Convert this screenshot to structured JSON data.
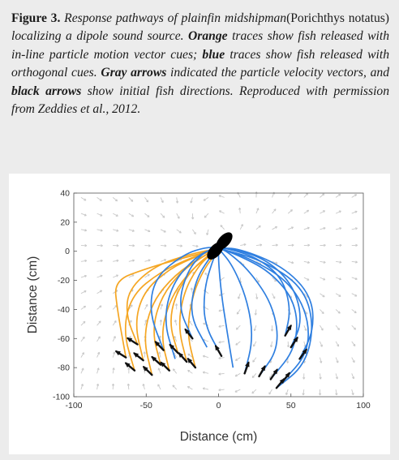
{
  "caption": {
    "label": "Figure 3.",
    "p1": " Response pathways of plainfin midshipman",
    "p2": "(Porichthys notatus)",
    "p3": " localizing a dipole sound source. ",
    "orange": "Orange",
    "p4": " traces show fish released with in-line particle motion vector cues; ",
    "blue": "blue",
    "p5": " traces show fish released with orthogonal cues. ",
    "gray": "Gray arrows",
    "p6": " indicated the particle velocity vectors, and ",
    "black": "black arrows",
    "p7": " show initial fish directions. Reproduced with permission from Zeddies et al., 2012."
  },
  "chart_data": {
    "type": "line",
    "title": "",
    "xlabel": "Distance (cm)",
    "ylabel": "Distance (cm)",
    "xlim": [
      -100,
      100
    ],
    "ylim": [
      -100,
      40
    ],
    "xticks": [
      -100,
      -50,
      0,
      50,
      100
    ],
    "yticks": [
      40,
      20,
      0,
      -20,
      -40,
      -60,
      -80,
      -100
    ],
    "grid": false,
    "colors": {
      "orange": "#f5a623",
      "blue": "#2f7fe0",
      "gray": "#c8c8c8",
      "black": "#111111"
    },
    "source": {
      "x": 0,
      "y": 2
    },
    "series": [
      {
        "color": "orange",
        "traces": [
          [
            [
              -64,
              -73
            ],
            [
              -70,
              -40
            ],
            [
              -72,
              -20
            ],
            [
              -50,
              -12
            ],
            [
              -30,
              -6
            ],
            [
              -10,
              -1
            ],
            [
              0,
              2
            ]
          ],
          [
            [
              -58,
              -82
            ],
            [
              -66,
              -55
            ],
            [
              -60,
              -30
            ],
            [
              -40,
              -14
            ],
            [
              -18,
              -4
            ],
            [
              0,
              2
            ]
          ],
          [
            [
              -52,
              -75
            ],
            [
              -58,
              -50
            ],
            [
              -52,
              -28
            ],
            [
              -34,
              -12
            ],
            [
              -14,
              -3
            ],
            [
              0,
              2
            ]
          ],
          [
            [
              -46,
              -85
            ],
            [
              -52,
              -60
            ],
            [
              -46,
              -35
            ],
            [
              -30,
              -16
            ],
            [
              -12,
              -4
            ],
            [
              0,
              2
            ]
          ],
          [
            [
              -40,
              -78
            ],
            [
              -46,
              -55
            ],
            [
              -40,
              -32
            ],
            [
              -26,
              -14
            ],
            [
              -10,
              -3
            ],
            [
              0,
              2
            ]
          ],
          [
            [
              -34,
              -82
            ],
            [
              -40,
              -58
            ],
            [
              -34,
              -34
            ],
            [
              -22,
              -16
            ],
            [
              -8,
              -4
            ],
            [
              0,
              2
            ]
          ],
          [
            [
              -28,
              -70
            ],
            [
              -34,
              -50
            ],
            [
              -30,
              -30
            ],
            [
              -18,
              -12
            ],
            [
              -6,
              -2
            ],
            [
              0,
              2
            ]
          ],
          [
            [
              -22,
              -76
            ],
            [
              -28,
              -52
            ],
            [
              -24,
              -28
            ],
            [
              -14,
              -10
            ],
            [
              -4,
              -1
            ],
            [
              0,
              2
            ]
          ],
          [
            [
              -16,
              -80
            ],
            [
              -22,
              -56
            ],
            [
              -18,
              -30
            ],
            [
              -10,
              -12
            ],
            [
              -2,
              -2
            ],
            [
              0,
              2
            ]
          ],
          [
            [
              -56,
              -64
            ],
            [
              -64,
              -44
            ],
            [
              -62,
              -26
            ],
            [
              -44,
              -10
            ],
            [
              -20,
              -2
            ],
            [
              0,
              2
            ]
          ]
        ]
      },
      {
        "color": "blue",
        "traces": [
          [
            [
              -38,
              -68
            ],
            [
              -48,
              -42
            ],
            [
              -44,
              -18
            ],
            [
              -24,
              -2
            ],
            [
              -8,
              3
            ],
            [
              0,
              2
            ]
          ],
          [
            [
              -30,
              -74
            ],
            [
              -38,
              -48
            ],
            [
              -32,
              -22
            ],
            [
              -16,
              -4
            ],
            [
              -4,
              2
            ],
            [
              0,
              2
            ]
          ],
          [
            [
              -18,
              -60
            ],
            [
              -28,
              -38
            ],
            [
              -22,
              -14
            ],
            [
              -10,
              0
            ],
            [
              0,
              2
            ]
          ],
          [
            [
              -8,
              -66
            ],
            [
              -20,
              -44
            ],
            [
              -16,
              -20
            ],
            [
              -6,
              -4
            ],
            [
              0,
              2
            ]
          ],
          [
            [
              2,
              -72
            ],
            [
              -10,
              -50
            ],
            [
              -10,
              -26
            ],
            [
              -4,
              -6
            ],
            [
              0,
              2
            ]
          ],
          [
            [
              10,
              -80
            ],
            [
              6,
              -56
            ],
            [
              2,
              -30
            ],
            [
              0,
              -8
            ],
            [
              0,
              2
            ]
          ],
          [
            [
              18,
              -84
            ],
            [
              24,
              -60
            ],
            [
              20,
              -34
            ],
            [
              10,
              -10
            ],
            [
              0,
              2
            ]
          ],
          [
            [
              28,
              -86
            ],
            [
              42,
              -66
            ],
            [
              38,
              -38
            ],
            [
              22,
              -14
            ],
            [
              6,
              0
            ],
            [
              0,
              2
            ]
          ],
          [
            [
              36,
              -88
            ],
            [
              54,
              -66
            ],
            [
              54,
              -36
            ],
            [
              36,
              -14
            ],
            [
              12,
              -2
            ],
            [
              0,
              2
            ]
          ],
          [
            [
              44,
              -90
            ],
            [
              62,
              -70
            ],
            [
              62,
              -44
            ],
            [
              48,
              -20
            ],
            [
              20,
              -4
            ],
            [
              0,
              2
            ]
          ],
          [
            [
              50,
              -66
            ],
            [
              58,
              -48
            ],
            [
              52,
              -24
            ],
            [
              34,
              -6
            ],
            [
              10,
              2
            ],
            [
              0,
              2
            ]
          ],
          [
            [
              46,
              -58
            ],
            [
              50,
              -40
            ],
            [
              44,
              -18
            ],
            [
              26,
              -4
            ],
            [
              6,
              2
            ],
            [
              0,
              2
            ]
          ],
          [
            [
              56,
              -74
            ],
            [
              66,
              -54
            ],
            [
              64,
              -30
            ],
            [
              44,
              -10
            ],
            [
              14,
              2
            ],
            [
              0,
              2
            ]
          ],
          [
            [
              40,
              -94
            ],
            [
              60,
              -78
            ],
            [
              66,
              -50
            ],
            [
              58,
              -24
            ],
            [
              30,
              -6
            ],
            [
              0,
              2
            ]
          ]
        ]
      }
    ],
    "fish_arrows": [
      [
        -64,
        -73,
        -58
      ],
      [
        -58,
        -82,
        -50
      ],
      [
        -52,
        -75,
        -52
      ],
      [
        -46,
        -85,
        -46
      ],
      [
        -40,
        -78,
        -48
      ],
      [
        -34,
        -82,
        -46
      ],
      [
        -28,
        -70,
        -44
      ],
      [
        -22,
        -76,
        -42
      ],
      [
        -16,
        -80,
        -40
      ],
      [
        -56,
        -64,
        -58
      ],
      [
        -38,
        -68,
        -44
      ],
      [
        -18,
        -60,
        -38
      ],
      [
        2,
        -72,
        -30
      ],
      [
        18,
        -84,
        20
      ],
      [
        28,
        -86,
        30
      ],
      [
        36,
        -88,
        34
      ],
      [
        44,
        -90,
        38
      ],
      [
        50,
        -66,
        34
      ],
      [
        46,
        -58,
        30
      ],
      [
        56,
        -74,
        36
      ],
      [
        40,
        -94,
        40
      ]
    ]
  }
}
